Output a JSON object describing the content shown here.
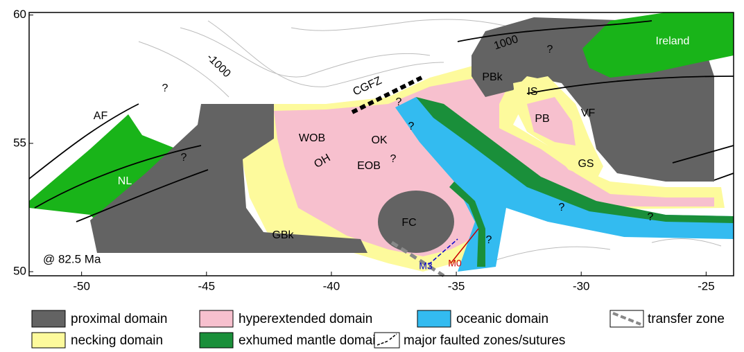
{
  "map": {
    "xlim": [
      -52.1,
      -23.9
    ],
    "ylim": [
      49.84,
      60.1
    ],
    "xticks": [
      -50,
      -45,
      -40,
      -35,
      -30,
      -25
    ],
    "yticks": [
      50,
      55,
      60
    ],
    "labels": [
      "-1000",
      "1000",
      "CGFZ",
      "AF",
      "?",
      "?",
      "NL",
      "GBk",
      "WOB",
      "OH",
      "OK",
      "EOB",
      "?",
      "?",
      "?",
      "FC",
      "PBk",
      "?",
      "IS",
      "VF",
      "PB",
      "GS",
      "Ireland",
      "?",
      "?",
      "?",
      "M3",
      "M0",
      "@ 82.5 Ma"
    ]
  },
  "legend": [
    "proximal domain",
    "hyperextended domain",
    "oceanic domain",
    "transfer zone",
    "necking domain",
    "exhumed mantle domain",
    "major faulted zones/sutures"
  ]
}
